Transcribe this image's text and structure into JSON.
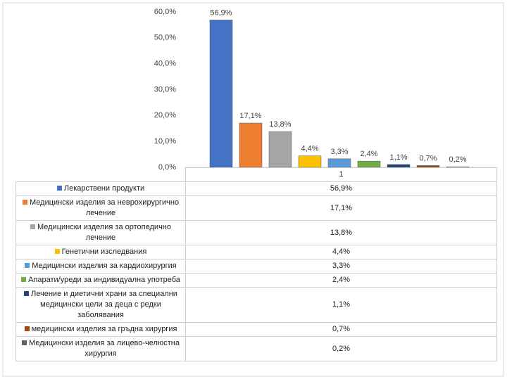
{
  "chart_data": {
    "type": "bar",
    "categories": [
      "1"
    ],
    "series": [
      {
        "name": "Лекарствени продукти",
        "color": "#4472c4",
        "values": [
          56.9
        ],
        "value_labels": [
          "56,9%"
        ]
      },
      {
        "name": "Медицински изделия за неврохирургично лечение",
        "color": "#ed7d31",
        "values": [
          17.1
        ],
        "value_labels": [
          "17,1%"
        ]
      },
      {
        "name": "Медицински изделия за ортопедично лечение",
        "color": "#a5a5a5",
        "values": [
          13.8
        ],
        "value_labels": [
          "13,8%"
        ]
      },
      {
        "name": "Генетични изследвания",
        "color": "#ffc000",
        "values": [
          4.4
        ],
        "value_labels": [
          "4,4%"
        ]
      },
      {
        "name": "Медицински изделия за кардиохирургия",
        "color": "#5b9bd5",
        "values": [
          3.3
        ],
        "value_labels": [
          "3,3%"
        ]
      },
      {
        "name": "Апарати/уреди за индивидуална употреба",
        "color": "#70ad47",
        "values": [
          2.4
        ],
        "value_labels": [
          "2,4%"
        ]
      },
      {
        "name": "Лечение и диетични храни за специални медицински цели за  деца с редки заболявания",
        "color": "#264478",
        "values": [
          1.1
        ],
        "value_labels": [
          "1,1%"
        ]
      },
      {
        "name": "медицински изделия за гръдна хирургия",
        "color": "#9e480e",
        "values": [
          0.7
        ],
        "value_labels": [
          "0,7%"
        ]
      },
      {
        "name": "Медицински изделия за лицево-челюстна хирургия",
        "color": "#636363",
        "values": [
          0.2
        ],
        "value_labels": [
          "0,2%"
        ]
      }
    ],
    "ylim": [
      0,
      60
    ],
    "yticks": [
      {
        "value": 0,
        "label": "0,0%"
      },
      {
        "value": 10,
        "label": "10,0%"
      },
      {
        "value": 20,
        "label": "20,0%"
      },
      {
        "value": 30,
        "label": "30,0%"
      },
      {
        "value": 40,
        "label": "40,0%"
      },
      {
        "value": 50,
        "label": "50,0%"
      },
      {
        "value": 60,
        "label": "60,0%"
      }
    ]
  }
}
